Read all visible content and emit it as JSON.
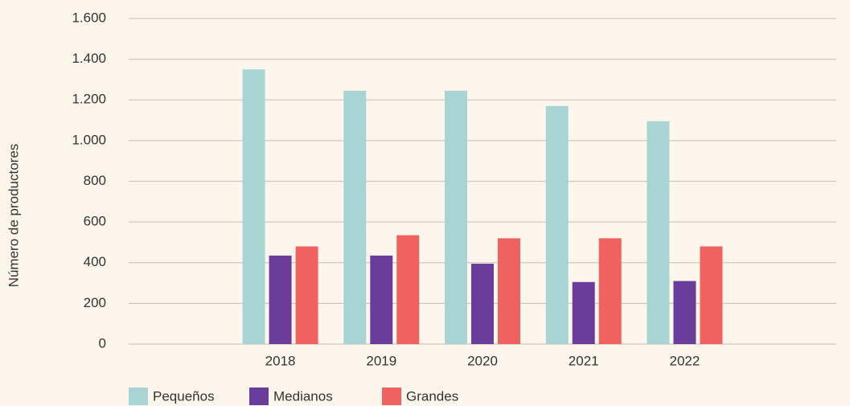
{
  "chart_data": {
    "type": "bar",
    "y_label": "Número de productores",
    "categories": [
      null,
      "2018",
      "2019",
      "2020",
      "2021",
      "2022",
      null
    ],
    "series": [
      {
        "name": "Pequeños",
        "color": "#a8d5d3",
        "values": [
          null,
          1350,
          1245,
          1245,
          1170,
          1095,
          null
        ]
      },
      {
        "name": "Medianos",
        "color": "#6a3d9a",
        "values": [
          null,
          435,
          435,
          395,
          305,
          310,
          null
        ]
      },
      {
        "name": "Grandes",
        "color": "#f0625f",
        "values": [
          null,
          480,
          535,
          520,
          520,
          480,
          null
        ]
      }
    ],
    "ylim": [
      0,
      1600
    ],
    "yticks": [
      0,
      200,
      400,
      600,
      800,
      {
        "value": 1000,
        "label": "1.000"
      },
      {
        "value": 1200,
        "label": "1.200"
      },
      {
        "value": 1400,
        "label": "1.400"
      },
      {
        "value": 1600,
        "label": "1.600"
      }
    ],
    "grid": true,
    "legend": "bottom-left"
  }
}
